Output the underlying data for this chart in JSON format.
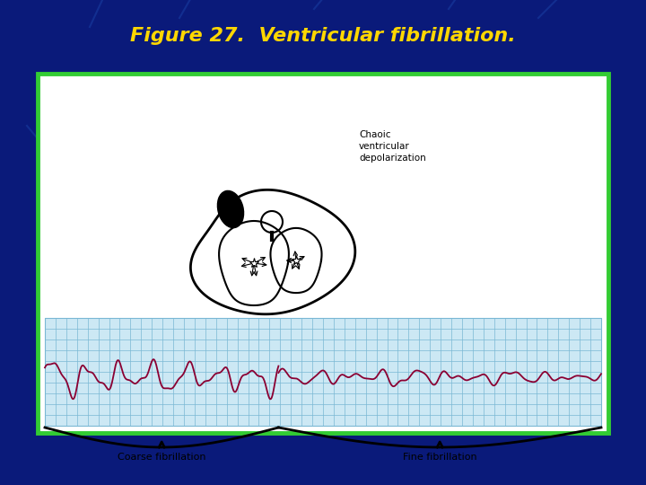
{
  "title": "Figure 27.  Ventricular fibrillation.",
  "title_color": "#FFD700",
  "title_fontsize": 16,
  "bg_color": "#0a1a7a",
  "panel_bg": "#ffffff",
  "panel_border_color": "#33cc33",
  "ecg_bg_color": "#cce8f4",
  "ecg_grid_color": "#7ab8d4",
  "coarse_color": "#8b0032",
  "fine_color": "#8b0032",
  "label_coarse": "Coarse fibrillation",
  "label_fine": "Fine fibrillation",
  "annotation_text": "Chaoic\nventricular\ndepolarization",
  "label_fontsize": 8,
  "annotation_fontsize": 7.5
}
